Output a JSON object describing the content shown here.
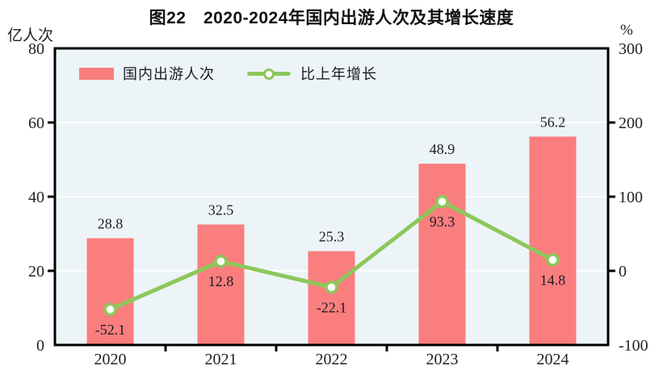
{
  "title": "图22　2020-2024年国内出游人次及其增长速度",
  "colors": {
    "bar": "#fa7e7e",
    "line": "#8cc85a",
    "marker_fill": "#ffffff",
    "plot_bg": "#edf4f8",
    "grid": "#ffffff",
    "axis": "#000000",
    "value_label": "#1c1c24",
    "tick_label": "#222222"
  },
  "chart_data": {
    "type": "bar+line",
    "categories": [
      "2020",
      "2021",
      "2022",
      "2023",
      "2024"
    ],
    "series": [
      {
        "name": "国内出游人次",
        "type": "bar",
        "axis": "left",
        "values": [
          28.8,
          32.5,
          25.3,
          48.9,
          56.2
        ],
        "labels": [
          "28.8",
          "32.5",
          "25.3",
          "48.9",
          "56.2"
        ]
      },
      {
        "name": "比上年增长",
        "type": "line",
        "axis": "right",
        "values": [
          -52.1,
          12.8,
          -22.1,
          93.3,
          14.8
        ],
        "labels": [
          "-52.1",
          "12.8",
          "-22.1",
          "93.3",
          "14.8"
        ]
      }
    ],
    "left_axis": {
      "label": "亿人次",
      "min": 0,
      "max": 80,
      "ticks": [
        0,
        20,
        40,
        60,
        80
      ]
    },
    "right_axis": {
      "label": "%",
      "min": -100,
      "max": 300,
      "ticks": [
        -100,
        0,
        100,
        200,
        300
      ]
    },
    "grid": true,
    "legend_position": "top-left-inside"
  }
}
